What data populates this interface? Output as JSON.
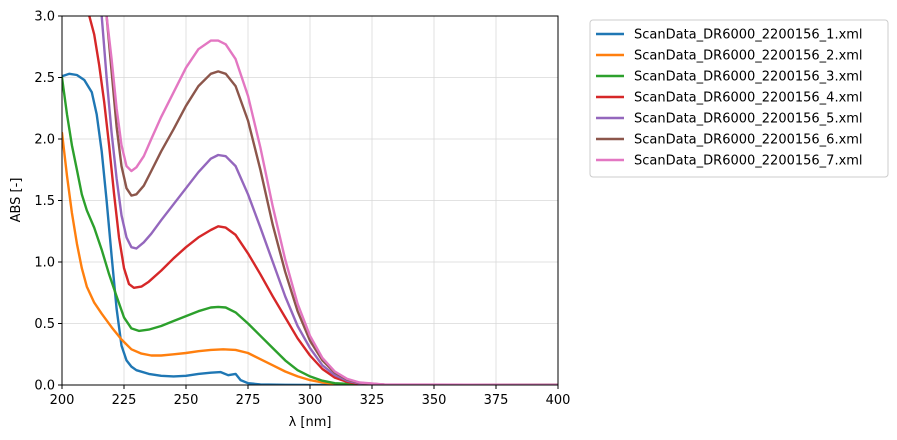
{
  "chart_data": {
    "type": "line",
    "xlabel": "λ [nm]",
    "ylabel": "ABS [-]",
    "xlim": [
      200,
      400
    ],
    "ylim": [
      0,
      3.0
    ],
    "xticks": [
      200,
      225,
      250,
      275,
      300,
      325,
      350,
      375,
      400
    ],
    "yticks": [
      0.0,
      0.5,
      1.0,
      1.5,
      2.0,
      2.5,
      3.0
    ],
    "xtick_labels": [
      "200",
      "225",
      "250",
      "275",
      "300",
      "325",
      "350",
      "375",
      "400"
    ],
    "ytick_labels": [
      "0.0",
      "0.5",
      "1.0",
      "1.5",
      "2.0",
      "2.5",
      "3.0"
    ],
    "grid": true,
    "legend_position": "outside-right-top",
    "series": [
      {
        "name": "ScanData_DR6000_2200156_1.xml",
        "color": "#1f77b4",
        "x": [
          200,
          203,
          206,
          209,
          212,
          214,
          216,
          218,
          220,
          222,
          224,
          226,
          228,
          230,
          235,
          240,
          245,
          250,
          255,
          260,
          264,
          267,
          270,
          272,
          275,
          280,
          290,
          300,
          320,
          400
        ],
        "y": [
          2.51,
          2.53,
          2.52,
          2.48,
          2.38,
          2.2,
          1.9,
          1.5,
          1.05,
          0.62,
          0.32,
          0.2,
          0.15,
          0.12,
          0.09,
          0.075,
          0.07,
          0.075,
          0.09,
          0.1,
          0.105,
          0.08,
          0.09,
          0.04,
          0.015,
          0.005,
          0.002,
          0.001,
          0.0,
          0.0
        ]
      },
      {
        "name": "ScanData_DR6000_2200156_2.xml",
        "color": "#ff7f0e",
        "x": [
          200,
          202,
          204,
          206,
          208,
          210,
          213,
          216,
          220,
          224,
          228,
          232,
          236,
          240,
          245,
          250,
          255,
          260,
          265,
          270,
          275,
          280,
          285,
          290,
          295,
          300,
          305,
          310,
          320,
          330,
          400
        ],
        "y": [
          2.05,
          1.7,
          1.4,
          1.15,
          0.95,
          0.8,
          0.67,
          0.58,
          0.47,
          0.37,
          0.29,
          0.255,
          0.24,
          0.24,
          0.25,
          0.26,
          0.275,
          0.285,
          0.29,
          0.285,
          0.26,
          0.21,
          0.16,
          0.11,
          0.07,
          0.04,
          0.02,
          0.01,
          0.003,
          0.0,
          0.0
        ]
      },
      {
        "name": "ScanData_DR6000_2200156_3.xml",
        "color": "#2ca02c",
        "x": [
          200,
          202,
          204,
          206,
          208,
          210,
          213,
          216,
          219,
          222,
          225,
          228,
          231,
          235,
          240,
          245,
          250,
          255,
          260,
          263,
          266,
          270,
          275,
          280,
          285,
          290,
          295,
          300,
          305,
          310,
          320,
          330,
          400
        ],
        "y": [
          2.5,
          2.2,
          1.95,
          1.75,
          1.55,
          1.42,
          1.28,
          1.1,
          0.9,
          0.72,
          0.55,
          0.46,
          0.44,
          0.45,
          0.48,
          0.52,
          0.56,
          0.6,
          0.63,
          0.635,
          0.63,
          0.59,
          0.5,
          0.4,
          0.3,
          0.2,
          0.12,
          0.07,
          0.035,
          0.015,
          0.004,
          0.0,
          0.0
        ]
      },
      {
        "name": "ScanData_DR6000_2200156_4.xml",
        "color": "#d62728",
        "x": [
          211,
          213,
          215,
          217,
          219,
          221,
          223,
          225,
          227,
          229,
          232,
          235,
          240,
          245,
          250,
          255,
          260,
          263,
          266,
          270,
          275,
          280,
          285,
          290,
          295,
          300,
          305,
          310,
          315,
          320,
          330,
          400
        ],
        "y": [
          3.0,
          2.85,
          2.6,
          2.3,
          1.95,
          1.55,
          1.2,
          0.95,
          0.82,
          0.79,
          0.8,
          0.84,
          0.93,
          1.03,
          1.12,
          1.2,
          1.26,
          1.29,
          1.28,
          1.22,
          1.07,
          0.9,
          0.72,
          0.55,
          0.38,
          0.24,
          0.13,
          0.06,
          0.025,
          0.01,
          0.002,
          0.0
        ]
      },
      {
        "name": "ScanData_DR6000_2200156_5.xml",
        "color": "#9467bd",
        "x": [
          216,
          218,
          220,
          222,
          224,
          226,
          228,
          230,
          233,
          236,
          240,
          245,
          250,
          255,
          260,
          263,
          266,
          270,
          275,
          280,
          285,
          290,
          295,
          300,
          305,
          310,
          315,
          320,
          330,
          400
        ],
        "y": [
          3.0,
          2.5,
          2.05,
          1.68,
          1.38,
          1.2,
          1.12,
          1.11,
          1.16,
          1.23,
          1.34,
          1.47,
          1.6,
          1.73,
          1.84,
          1.87,
          1.86,
          1.78,
          1.55,
          1.28,
          1.0,
          0.72,
          0.48,
          0.3,
          0.16,
          0.08,
          0.035,
          0.012,
          0.002,
          0.0
        ]
      },
      {
        "name": "ScanData_DR6000_2200156_6.xml",
        "color": "#8c564b",
        "x": [
          218,
          220,
          222,
          224,
          226,
          228,
          230,
          233,
          236,
          240,
          245,
          250,
          255,
          260,
          263,
          266,
          270,
          275,
          280,
          285,
          290,
          295,
          300,
          305,
          310,
          315,
          320,
          330,
          400
        ],
        "y": [
          3.0,
          2.55,
          2.1,
          1.78,
          1.6,
          1.54,
          1.55,
          1.62,
          1.74,
          1.9,
          2.08,
          2.27,
          2.43,
          2.53,
          2.55,
          2.53,
          2.43,
          2.15,
          1.75,
          1.3,
          0.92,
          0.6,
          0.36,
          0.2,
          0.1,
          0.045,
          0.018,
          0.003,
          0.0
        ]
      },
      {
        "name": "ScanData_DR6000_2200156_7.xml",
        "color": "#e377c2",
        "x": [
          218,
          220,
          222,
          224,
          226,
          228,
          230,
          233,
          236,
          240,
          245,
          250,
          255,
          260,
          263,
          266,
          270,
          275,
          280,
          285,
          290,
          295,
          300,
          305,
          310,
          315,
          320,
          330,
          400
        ],
        "y": [
          3.0,
          2.65,
          2.25,
          1.95,
          1.78,
          1.74,
          1.77,
          1.86,
          2.0,
          2.18,
          2.38,
          2.58,
          2.73,
          2.8,
          2.8,
          2.77,
          2.65,
          2.35,
          1.93,
          1.45,
          1.02,
          0.66,
          0.4,
          0.22,
          0.11,
          0.05,
          0.02,
          0.004,
          0.0
        ]
      }
    ]
  }
}
